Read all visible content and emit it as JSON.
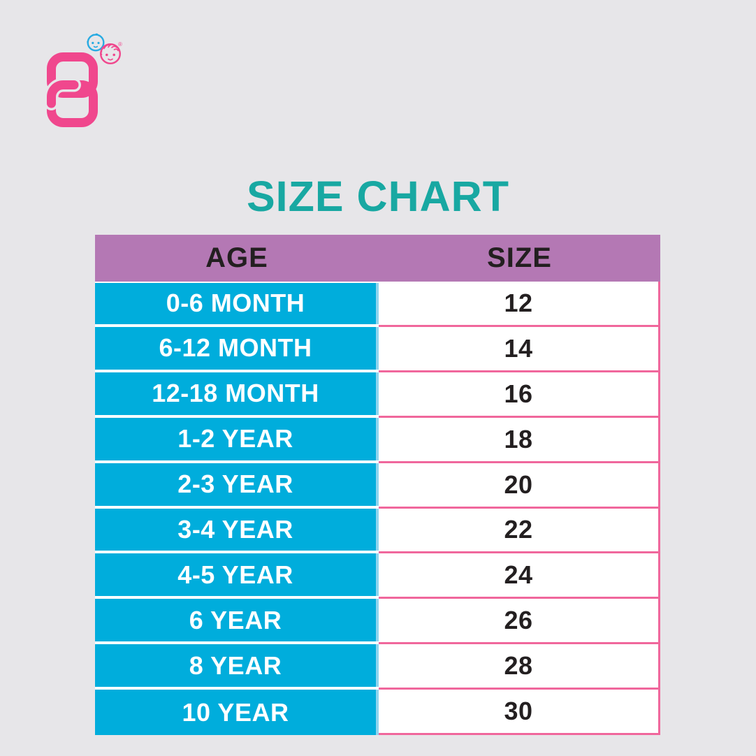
{
  "brand": {
    "name": "baby-brand-logo",
    "registered_mark": "®"
  },
  "title": "SIZE CHART",
  "chart_data": {
    "type": "table",
    "title": "SIZE CHART",
    "columns": [
      "AGE",
      "SIZE"
    ],
    "rows": [
      [
        "0-6 MONTH",
        12
      ],
      [
        "6-12 MONTH",
        14
      ],
      [
        "12-18 MONTH",
        16
      ],
      [
        "1-2 YEAR",
        18
      ],
      [
        "2-3 YEAR",
        20
      ],
      [
        "3-4 YEAR",
        22
      ],
      [
        "4-5 YEAR",
        24
      ],
      [
        "6 YEAR",
        26
      ],
      [
        "8 YEAR",
        28
      ],
      [
        "10 YEAR",
        30
      ]
    ]
  },
  "colors": {
    "background": "#E7E6E9",
    "title_teal": "#18A8A2",
    "header_purple": "#B478B4",
    "age_cell_blue": "#00ADDC",
    "column_divider_light_blue": "#8FD5EF",
    "size_grid_pink": "#F0679C",
    "text_dark": "#231F20",
    "age_text_white": "#FFFFFF",
    "logo_pink": "#F0478D",
    "logo_baby_blue": "#29ABE2"
  }
}
